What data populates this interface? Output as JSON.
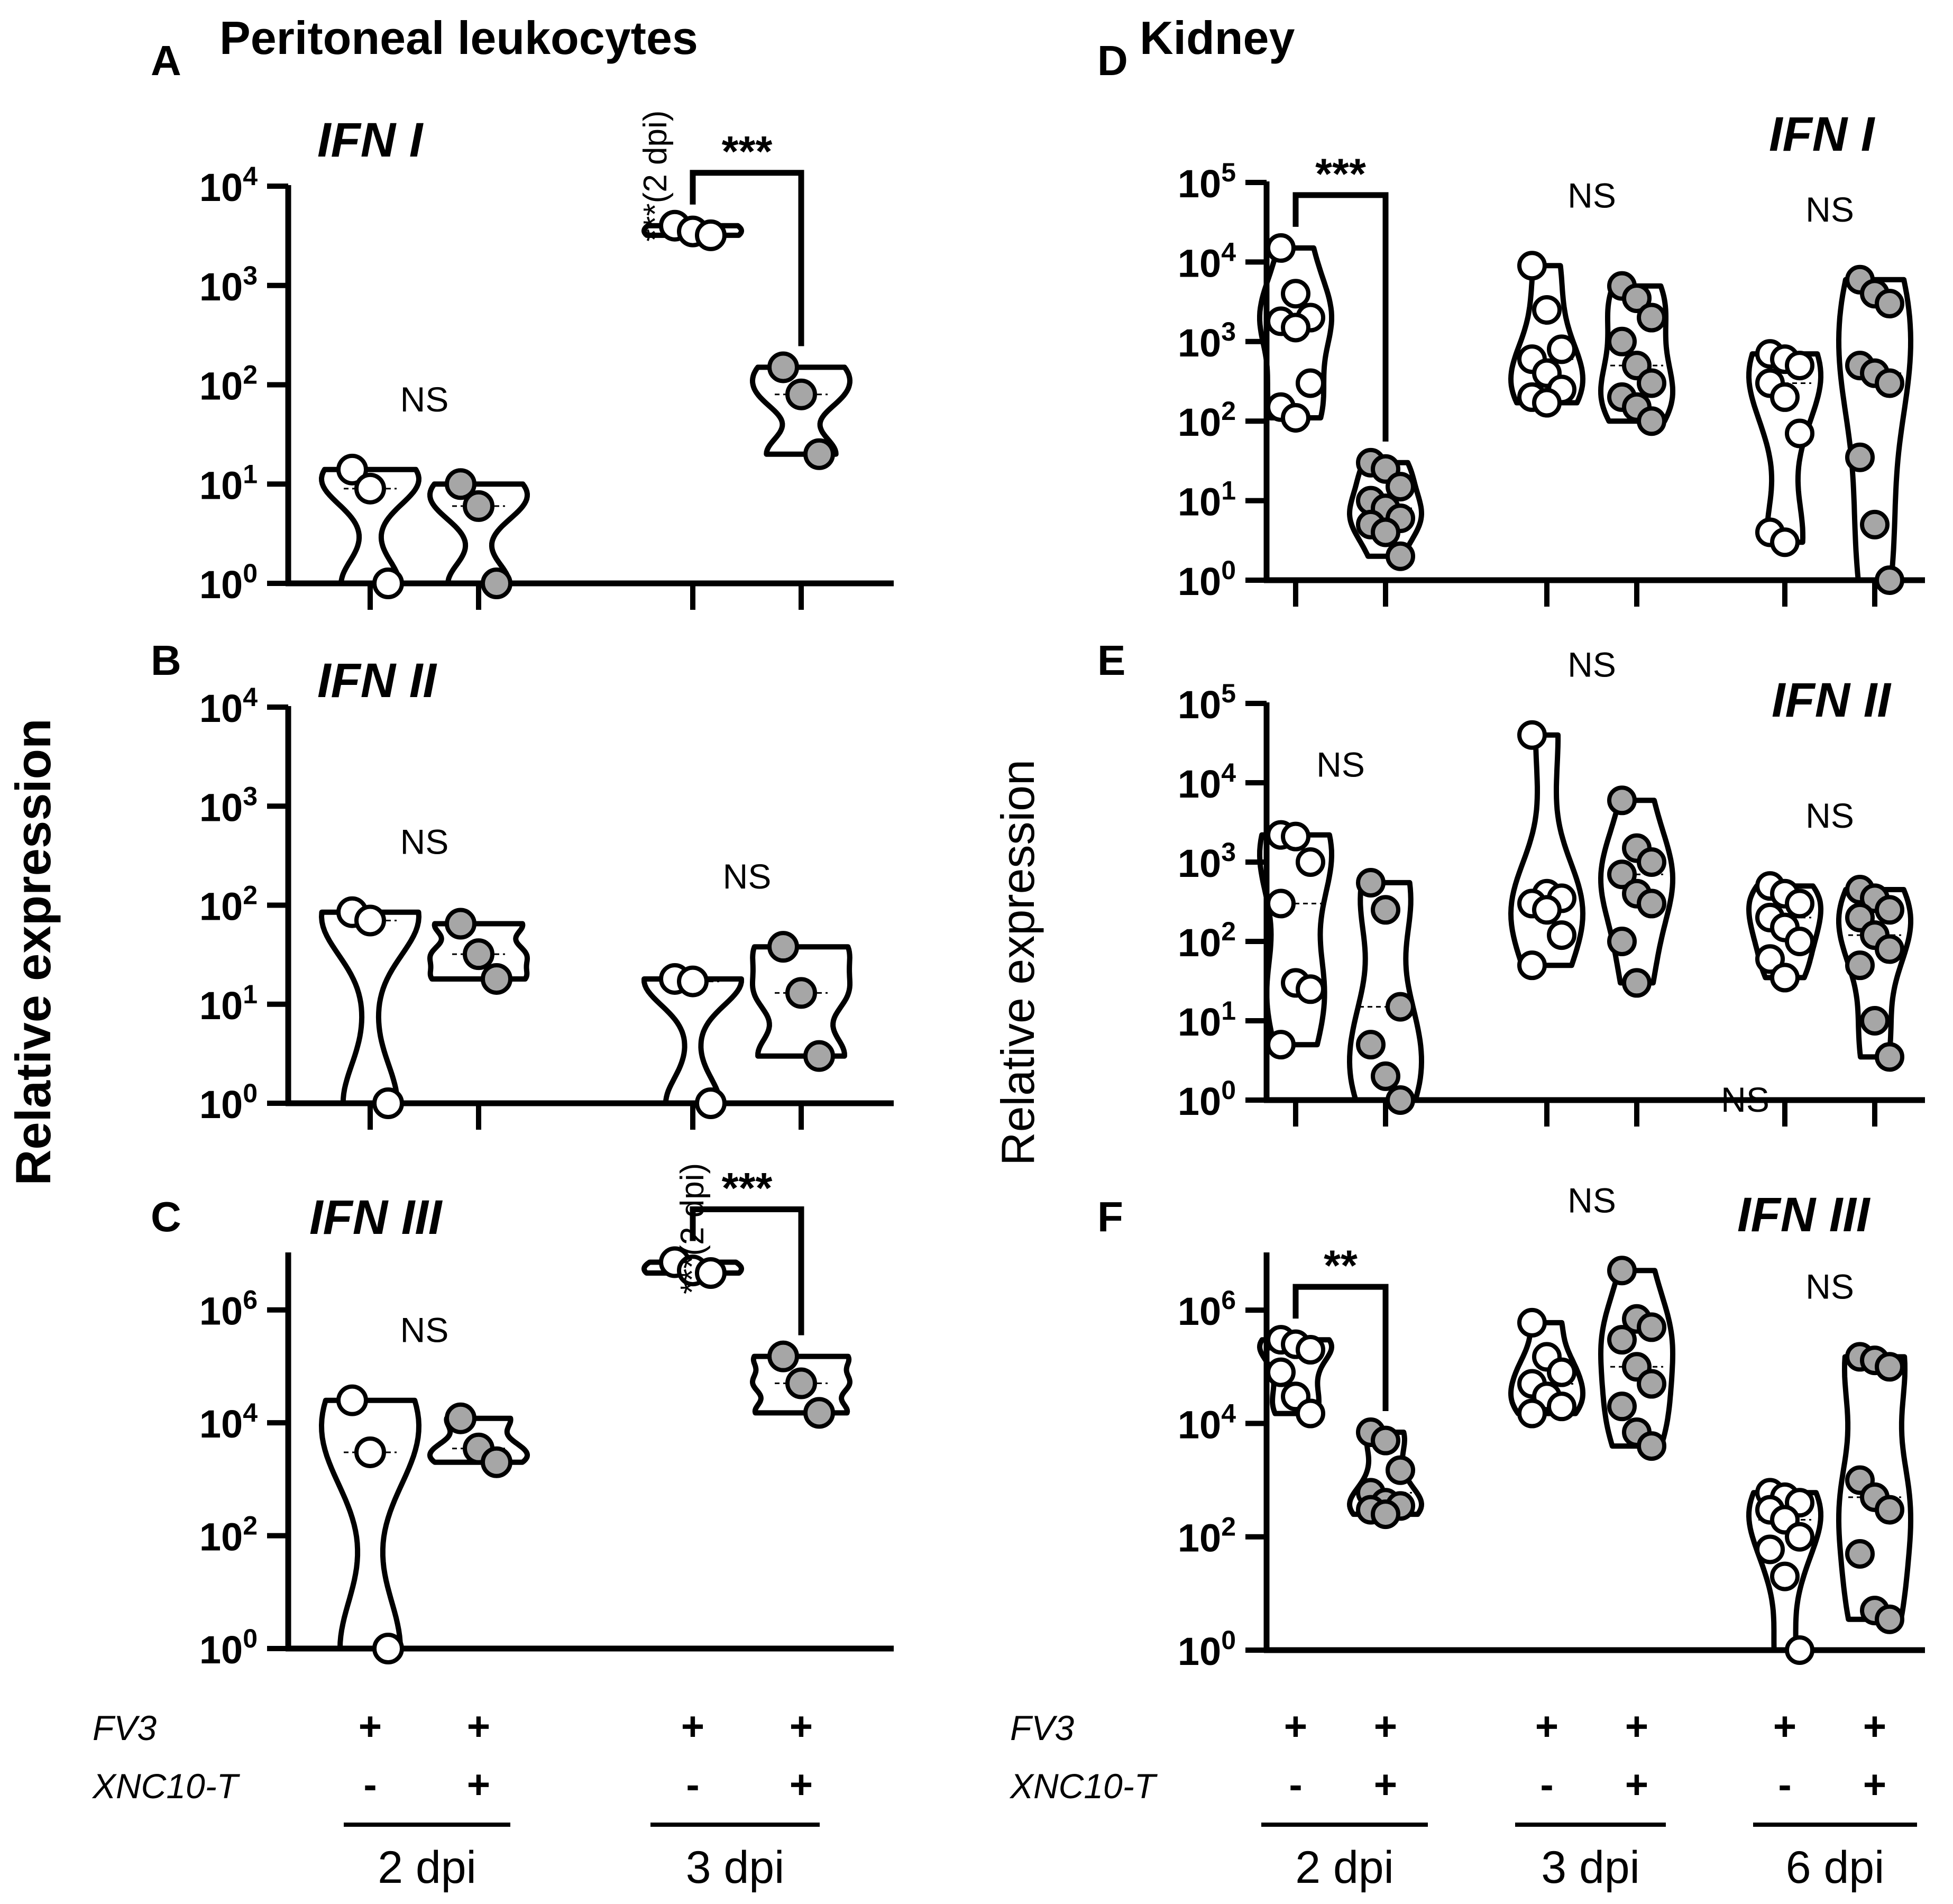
{
  "figure": {
    "left_title": "Peritoneal leukocytes",
    "right_title": "Kidney",
    "left_ylabel": "Relative expression",
    "right_ylabel": "Relative expression"
  },
  "colors": {
    "fv3_only": "#ffffff",
    "fv3_xnc10t": "#a6a6a6",
    "ink": "#000000"
  },
  "conditions": {
    "row1_label": "FV3",
    "row2_label": "XNC10-T",
    "fv3_values": [
      "+",
      "+"
    ],
    "xnc_values": [
      "-",
      "+"
    ]
  },
  "chart_data": [
    {
      "panel": "A",
      "title": "IFN I",
      "type": "violin",
      "scale": "log10",
      "ylim_exp": [
        0,
        4
      ],
      "yticks": [
        "10",
        "10",
        "10",
        "10",
        "10"
      ],
      "ytick_exps": [
        "0",
        "1",
        "2",
        "3",
        "4"
      ],
      "groups": [
        {
          "dpi": "2 dpi",
          "fv3": "+",
          "xnc10t": "-",
          "values": [
            14,
            9,
            1
          ]
        },
        {
          "dpi": "2 dpi",
          "fv3": "+",
          "xnc10t": "+",
          "values": [
            10,
            6,
            1
          ]
        },
        {
          "dpi": "3 dpi",
          "fv3": "+",
          "xnc10t": "-",
          "values": [
            4000,
            3500,
            3200
          ]
        },
        {
          "dpi": "3 dpi",
          "fv3": "+",
          "xnc10t": "+",
          "values": [
            150,
            80,
            20
          ]
        }
      ],
      "annotations": [
        {
          "text": "NS",
          "between": [
            0,
            1
          ]
        },
        {
          "text": "***",
          "between": [
            2,
            3
          ]
        },
        {
          "text": "***(2 dpi)",
          "group": 2
        }
      ]
    },
    {
      "panel": "B",
      "title": "IFN II",
      "type": "violin",
      "scale": "log10",
      "ylim_exp": [
        0,
        4
      ],
      "yticks": [
        "10",
        "10",
        "10",
        "10",
        "10"
      ],
      "ytick_exps": [
        "0",
        "1",
        "2",
        "3",
        "4"
      ],
      "groups": [
        {
          "dpi": "2 dpi",
          "fv3": "+",
          "xnc10t": "-",
          "values": [
            85,
            70,
            1
          ]
        },
        {
          "dpi": "2 dpi",
          "fv3": "+",
          "xnc10t": "+",
          "values": [
            65,
            32,
            18
          ]
        },
        {
          "dpi": "3 dpi",
          "fv3": "+",
          "xnc10t": "-",
          "values": [
            18,
            17,
            1
          ]
        },
        {
          "dpi": "3 dpi",
          "fv3": "+",
          "xnc10t": "+",
          "values": [
            38,
            13,
            3
          ]
        }
      ],
      "annotations": [
        {
          "text": "NS",
          "between": [
            0,
            1
          ]
        },
        {
          "text": "NS",
          "between": [
            2,
            3
          ]
        }
      ]
    },
    {
      "panel": "C",
      "title": "IFN III",
      "type": "violin",
      "scale": "log10",
      "ylim_exp": [
        0,
        7
      ],
      "yticks": [
        "10",
        "10",
        "10",
        "10"
      ],
      "ytick_exps": [
        "0",
        "2",
        "4",
        "6"
      ],
      "groups": [
        {
          "dpi": "2 dpi",
          "fv3": "+",
          "xnc10t": "-",
          "values": [
            25000,
            3000,
            1
          ]
        },
        {
          "dpi": "2 dpi",
          "fv3": "+",
          "xnc10t": "+",
          "values": [
            12000,
            3500,
            2000
          ]
        },
        {
          "dpi": "3 dpi",
          "fv3": "+",
          "xnc10t": "-",
          "values": [
            7000000,
            5000000,
            4500000
          ]
        },
        {
          "dpi": "3 dpi",
          "fv3": "+",
          "xnc10t": "+",
          "values": [
            150000,
            50000,
            15000
          ]
        }
      ],
      "annotations": [
        {
          "text": "NS",
          "between": [
            0,
            1
          ]
        },
        {
          "text": "***",
          "between": [
            2,
            3
          ]
        },
        {
          "text": "***(2 dpi)",
          "group": 2
        }
      ]
    },
    {
      "panel": "D",
      "title": "IFN I",
      "type": "violin",
      "scale": "log10",
      "ylim_exp": [
        0,
        5
      ],
      "yticks": [
        "10",
        "10",
        "10",
        "10",
        "10",
        "10"
      ],
      "ytick_exps": [
        "0",
        "1",
        "2",
        "3",
        "4",
        "5"
      ],
      "groups": [
        {
          "dpi": "2 dpi",
          "fv3": "+",
          "xnc10t": "-",
          "values": [
            15000,
            4000,
            2000,
            1800,
            1500,
            300,
            150,
            110
          ]
        },
        {
          "dpi": "2 dpi",
          "fv3": "+",
          "xnc10t": "+",
          "values": [
            30,
            25,
            15,
            10,
            8,
            6,
            5,
            4,
            2
          ]
        },
        {
          "dpi": "3 dpi",
          "fv3": "+",
          "xnc10t": "-",
          "values": [
            9000,
            2500,
            800,
            600,
            400,
            250,
            200,
            170
          ]
        },
        {
          "dpi": "3 dpi",
          "fv3": "+",
          "xnc10t": "+",
          "values": [
            5000,
            3500,
            2000,
            1000,
            500,
            300,
            200,
            150,
            100
          ]
        },
        {
          "dpi": "6 dpi",
          "fv3": "+",
          "xnc10t": "-",
          "values": [
            700,
            600,
            500,
            300,
            200,
            70,
            4,
            3
          ]
        },
        {
          "dpi": "6 dpi",
          "fv3": "+",
          "xnc10t": "+",
          "values": [
            6000,
            4000,
            3000,
            500,
            400,
            300,
            35,
            5,
            1
          ]
        }
      ],
      "annotations": [
        {
          "text": "***",
          "between": [
            0,
            1
          ]
        },
        {
          "text": "NS",
          "between": [
            2,
            3
          ]
        },
        {
          "text": "NS",
          "between": [
            4,
            5
          ]
        }
      ]
    },
    {
      "panel": "E",
      "title": "IFN II",
      "type": "violin",
      "scale": "log10",
      "ylim_exp": [
        0,
        5
      ],
      "yticks": [
        "10",
        "10",
        "10",
        "10",
        "10",
        "10"
      ],
      "ytick_exps": [
        "0",
        "1",
        "2",
        "3",
        "4",
        "5"
      ],
      "groups": [
        {
          "dpi": "2 dpi",
          "fv3": "+",
          "xnc10t": "-",
          "values": [
            2200,
            2100,
            1000,
            300,
            30,
            25,
            5
          ]
        },
        {
          "dpi": "2 dpi",
          "fv3": "+",
          "xnc10t": "+",
          "values": [
            550,
            250,
            15,
            5,
            2,
            1
          ]
        },
        {
          "dpi": "3 dpi",
          "fv3": "+",
          "xnc10t": "-",
          "values": [
            40000,
            400,
            350,
            300,
            250,
            120,
            50
          ]
        },
        {
          "dpi": "3 dpi",
          "fv3": "+",
          "xnc10t": "+",
          "values": [
            6000,
            1500,
            1000,
            700,
            400,
            300,
            100,
            30
          ]
        },
        {
          "dpi": "6 dpi",
          "fv3": "+",
          "xnc10t": "-",
          "values": [
            500,
            400,
            300,
            200,
            150,
            100,
            60,
            35
          ]
        },
        {
          "dpi": "6 dpi",
          "fv3": "+",
          "xnc10t": "+",
          "values": [
            450,
            350,
            250,
            200,
            120,
            80,
            50,
            10,
            3.5
          ]
        }
      ],
      "annotations": [
        {
          "text": "NS",
          "between": [
            0,
            1
          ]
        },
        {
          "text": "NS",
          "between": [
            2,
            3
          ]
        },
        {
          "text": "NS",
          "between": [
            4,
            5
          ]
        }
      ],
      "extra_text": "NS"
    },
    {
      "panel": "F",
      "title": "IFN III",
      "type": "violin",
      "scale": "log10",
      "ylim_exp": [
        0,
        7
      ],
      "yticks": [
        "10",
        "10",
        "10",
        "10"
      ],
      "ytick_exps": [
        "0",
        "2",
        "4",
        "6"
      ],
      "groups": [
        {
          "dpi": "2 dpi",
          "fv3": "+",
          "xnc10t": "-",
          "values": [
            300000,
            250000,
            200000,
            80000,
            30000,
            15000
          ]
        },
        {
          "dpi": "2 dpi",
          "fv3": "+",
          "xnc10t": "+",
          "values": [
            7000,
            5000,
            1500,
            600,
            400,
            350,
            300,
            250
          ]
        },
        {
          "dpi": "3 dpi",
          "fv3": "+",
          "xnc10t": "-",
          "values": [
            600000,
            150000,
            80000,
            50000,
            30000,
            20000,
            15000
          ]
        },
        {
          "dpi": "3 dpi",
          "fv3": "+",
          "xnc10t": "+",
          "values": [
            5000000,
            700000,
            500000,
            300000,
            100000,
            50000,
            20000,
            7000,
            4000
          ]
        },
        {
          "dpi": "6 dpi",
          "fv3": "+",
          "xnc10t": "-",
          "values": [
            600,
            500,
            400,
            300,
            200,
            100,
            60,
            20,
            1
          ]
        },
        {
          "dpi": "6 dpi",
          "fv3": "+",
          "xnc10t": "+",
          "values": [
            150000,
            130000,
            100000,
            1000,
            500,
            300,
            50,
            5,
            3.5
          ]
        }
      ],
      "annotations": [
        {
          "text": "**",
          "between": [
            0,
            1
          ]
        },
        {
          "text": "NS",
          "between": [
            2,
            3
          ]
        },
        {
          "text": "NS",
          "between": [
            4,
            5
          ]
        }
      ]
    }
  ]
}
